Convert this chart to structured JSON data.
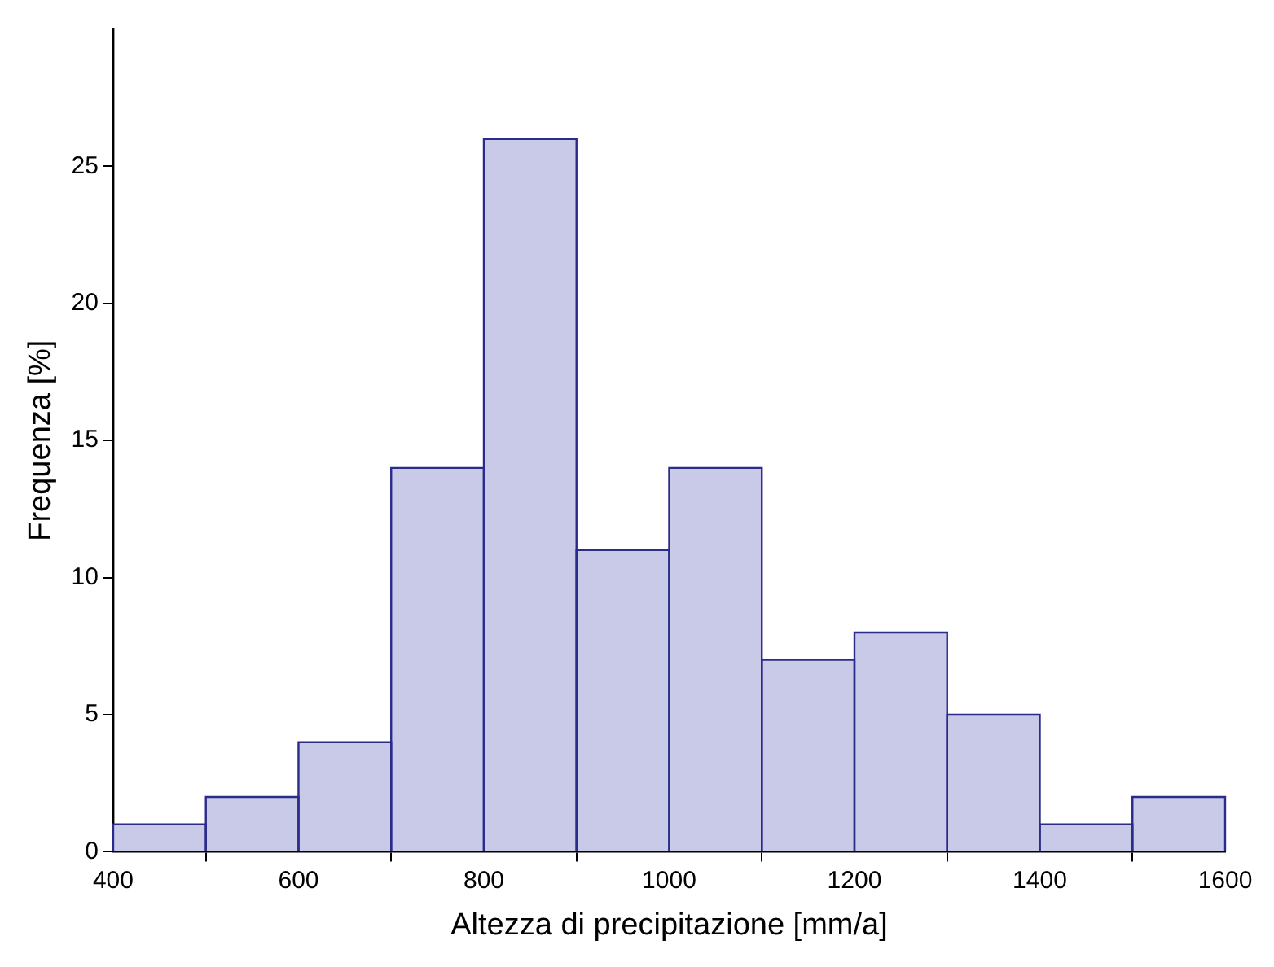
{
  "chart_data": {
    "type": "histogram",
    "xlabel": "Altezza di precipitazione [mm/a]",
    "ylabel": "Frequenza [%]",
    "bins": [
      400,
      500,
      600,
      700,
      800,
      900,
      1000,
      1100,
      1200,
      1300,
      1400,
      1500,
      1600
    ],
    "values": [
      1,
      2,
      4,
      14,
      26,
      11,
      14,
      7,
      8,
      5,
      1,
      2
    ],
    "color": "#c9c9e8",
    "xlim": [
      400,
      1600
    ],
    "xticks": [
      400,
      600,
      800,
      1000,
      1200,
      1400,
      1600
    ],
    "ylim": [
      0,
      30
    ],
    "yticks": [
      0,
      5,
      10,
      15,
      20,
      25
    ],
    "grid": false,
    "legend": false
  }
}
